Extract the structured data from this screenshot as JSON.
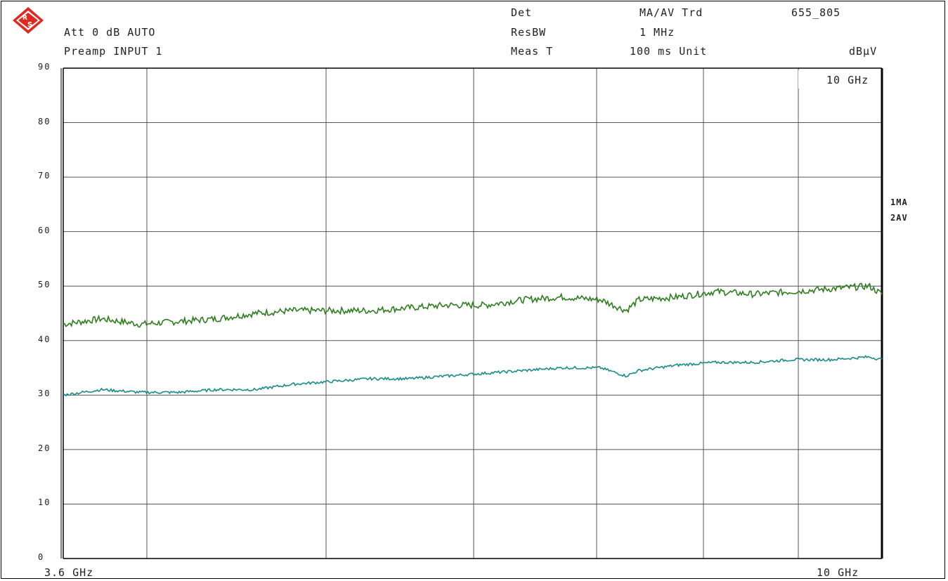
{
  "header": {
    "att": "Att 0 dB AUTO",
    "preamp": "Preamp INPUT 1",
    "det_label": "Det",
    "det_value": "MA/AV Trd",
    "id": "655_805",
    "resbw_label": "ResBW",
    "resbw_value": "1 MHz",
    "meas_label": "Meas T",
    "meas_value": "100 ms Unit",
    "unit": "dBµV"
  },
  "plot": {
    "corner_label": "10 GHz",
    "x_start_label": "3.6 GHz",
    "x_stop_label": "10 GHz"
  },
  "traces": {
    "t1": "1MA",
    "t2": "2AV"
  },
  "colors": {
    "ma": "#2e7d1e",
    "av": "#1a8a8a",
    "trace_label": "#22dd22",
    "logo": "#e0281e"
  },
  "chart_data": {
    "type": "line",
    "xlim": [
      3.6,
      10
    ],
    "ylim": [
      0,
      90
    ],
    "yticks": [
      "90",
      "80",
      "70",
      "60",
      "50",
      "40",
      "30",
      "20",
      "10",
      "0"
    ],
    "grid": true,
    "series": [
      {
        "name": "1MA",
        "x": [
          3.6,
          3.9,
          4.2,
          4.5,
          4.8,
          5.1,
          5.4,
          5.7,
          6.0,
          6.3,
          6.6,
          6.9,
          7.2,
          7.5,
          7.8,
          8.0,
          8.1,
          8.4,
          8.7,
          9.0,
          9.3,
          9.6,
          9.9,
          10.0
        ],
        "values": [
          43,
          44,
          43,
          43.5,
          44,
          45,
          45.5,
          45.5,
          45.5,
          46,
          46.5,
          46.5,
          47.5,
          48,
          47.5,
          45.5,
          47.5,
          48,
          49,
          48.5,
          49,
          49.5,
          50,
          48.5
        ]
      },
      {
        "name": "2AV",
        "x": [
          3.6,
          3.9,
          4.2,
          4.5,
          4.8,
          5.1,
          5.4,
          5.7,
          6.0,
          6.3,
          6.6,
          6.9,
          7.2,
          7.5,
          7.8,
          8.0,
          8.1,
          8.4,
          8.7,
          9.0,
          9.3,
          9.6,
          9.9,
          10.0
        ],
        "values": [
          30,
          31,
          30.5,
          30.5,
          31,
          31,
          32,
          32.5,
          33,
          33,
          33.5,
          34,
          34.5,
          35,
          35,
          33.5,
          34.5,
          35.5,
          36,
          36,
          36.5,
          36.5,
          37,
          36.5
        ]
      }
    ]
  }
}
